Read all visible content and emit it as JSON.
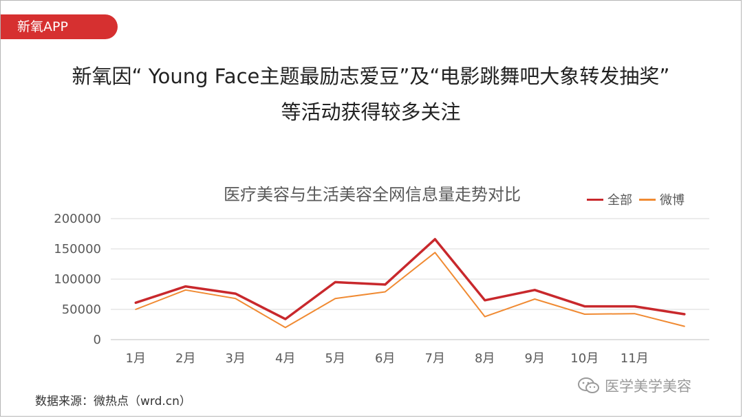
{
  "tag_label": "新氧APP",
  "headline": {
    "line1": "新氧因“ Young Face主题最励志爱豆”及“电影跳舞吧大象转发抽奖”",
    "line2": "等活动获得较多关注"
  },
  "source_text": "数据来源：微热点（wrd.cn）",
  "watermark_text": "医学美学美容",
  "colors": {
    "tag": "#d63030",
    "all": "#c8282c",
    "weibo": "#f08a32",
    "grid": "#d9d9d9"
  },
  "chart_data": {
    "type": "line",
    "title": "医疗美容与生活美容全网信息量走势对比",
    "xlabel": "",
    "ylabel": "",
    "categories": [
      "1月",
      "2月",
      "3月",
      "4月",
      "5月",
      "6月",
      "7月",
      "8月",
      "9月",
      "10月",
      "11月",
      ""
    ],
    "y_ticks": [
      "0",
      "50000",
      "100000",
      "150000",
      "200000"
    ],
    "ylim": [
      0,
      200000
    ],
    "grid": true,
    "legend_position": "top-right",
    "series": [
      {
        "name": "全部",
        "color": "#c8282c",
        "values": [
          61000,
          88000,
          76000,
          34000,
          95000,
          91000,
          166000,
          65000,
          82000,
          55000,
          55000,
          42000
        ]
      },
      {
        "name": "微博",
        "color": "#f08a32",
        "values": [
          50000,
          82000,
          68000,
          20000,
          68000,
          79000,
          144000,
          38000,
          67000,
          42000,
          43000,
          22000
        ]
      }
    ]
  }
}
